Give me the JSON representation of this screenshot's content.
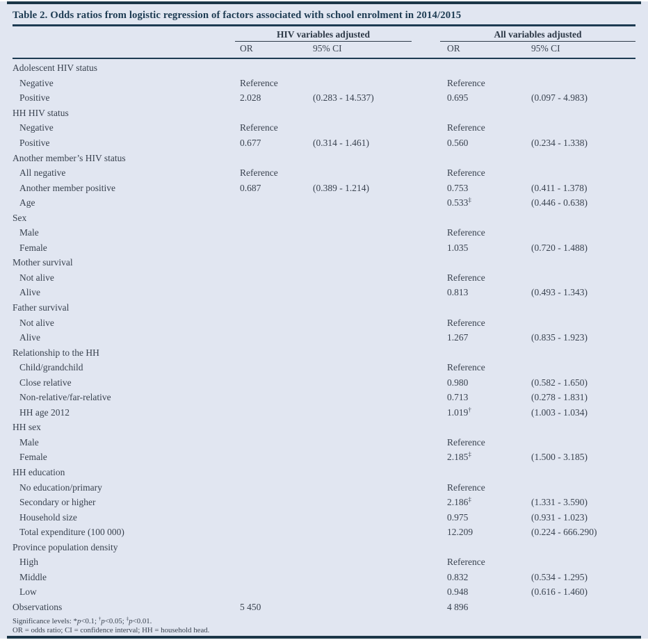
{
  "title": "Table 2. Odds ratios from logistic regression of factors associated with school enrolment in 2014/2015",
  "columns": {
    "group1": "HIV variables adjusted",
    "group2": "All variables adjusted",
    "sub": [
      "OR",
      "95% CI",
      "OR",
      "95% CI"
    ]
  },
  "table": {
    "rows": [
      {
        "label": "Adolescent HIV status",
        "indent": 0,
        "cells": [
          "",
          "",
          "",
          ""
        ]
      },
      {
        "label": "Negative",
        "indent": 1,
        "cells": [
          "Reference",
          "",
          "Reference",
          ""
        ]
      },
      {
        "label": "Positive",
        "indent": 1,
        "cells": [
          "2.028",
          "(0.283 - 14.537)",
          "0.695",
          "(0.097 - 4.983)"
        ]
      },
      {
        "label": "HH HIV status",
        "indent": 0,
        "cells": [
          "",
          "",
          "",
          ""
        ]
      },
      {
        "label": "Negative",
        "indent": 1,
        "cells": [
          "Reference",
          "",
          "Reference",
          ""
        ]
      },
      {
        "label": "Positive",
        "indent": 1,
        "cells": [
          "0.677",
          "(0.314 - 1.461)",
          "0.560",
          "(0.234 - 1.338)"
        ]
      },
      {
        "label": "Another member’s HIV status",
        "indent": 0,
        "cells": [
          "",
          "",
          "",
          ""
        ]
      },
      {
        "label": "All negative",
        "indent": 1,
        "cells": [
          "Reference",
          "",
          "Reference",
          ""
        ]
      },
      {
        "label": "Another member positive",
        "indent": 1,
        "cells": [
          "0.687",
          "(0.389 - 1.214)",
          "0.753",
          "(0.411 - 1.378)"
        ]
      },
      {
        "label": "Age",
        "indent": 1,
        "cells": [
          "",
          "",
          {
            "v": "0.533",
            "sup": "‡"
          },
          "(0.446 - 0.638)"
        ]
      },
      {
        "label": "Sex",
        "indent": 0,
        "cells": [
          "",
          "",
          "",
          ""
        ]
      },
      {
        "label": "Male",
        "indent": 1,
        "cells": [
          "",
          "",
          "Reference",
          ""
        ]
      },
      {
        "label": "Female",
        "indent": 1,
        "cells": [
          "",
          "",
          "1.035",
          "(0.720 - 1.488)"
        ]
      },
      {
        "label": "Mother survival",
        "indent": 0,
        "cells": [
          "",
          "",
          "",
          ""
        ]
      },
      {
        "label": "Not alive",
        "indent": 1,
        "cells": [
          "",
          "",
          "Reference",
          ""
        ]
      },
      {
        "label": "Alive",
        "indent": 1,
        "cells": [
          "",
          "",
          "0.813",
          "(0.493 - 1.343)"
        ]
      },
      {
        "label": "Father survival",
        "indent": 0,
        "cells": [
          "",
          "",
          "",
          ""
        ]
      },
      {
        "label": "Not alive",
        "indent": 1,
        "cells": [
          "",
          "",
          "Reference",
          ""
        ]
      },
      {
        "label": "Alive",
        "indent": 1,
        "cells": [
          "",
          "",
          "1.267",
          "(0.835 - 1.923)"
        ]
      },
      {
        "label": "Relationship to the HH",
        "indent": 0,
        "cells": [
          "",
          "",
          "",
          ""
        ]
      },
      {
        "label": "Child/grandchild",
        "indent": 1,
        "cells": [
          "",
          "",
          "Reference",
          ""
        ]
      },
      {
        "label": "Close relative",
        "indent": 1,
        "cells": [
          "",
          "",
          "0.980",
          "(0.582 - 1.650)"
        ]
      },
      {
        "label": "Non-relative/far-relative",
        "indent": 1,
        "cells": [
          "",
          "",
          "0.713",
          "(0.278 - 1.831)"
        ]
      },
      {
        "label": "HH age 2012",
        "indent": 1,
        "cells": [
          "",
          "",
          {
            "v": "1.019",
            "sup": "†"
          },
          "(1.003 - 1.034)"
        ]
      },
      {
        "label": "HH sex",
        "indent": 0,
        "cells": [
          "",
          "",
          "",
          ""
        ]
      },
      {
        "label": "Male",
        "indent": 1,
        "cells": [
          "",
          "",
          "Reference",
          ""
        ]
      },
      {
        "label": "Female",
        "indent": 1,
        "cells": [
          "",
          "",
          {
            "v": "2.185",
            "sup": "‡"
          },
          "(1.500 - 3.185)"
        ]
      },
      {
        "label": "HH education",
        "indent": 0,
        "cells": [
          "",
          "",
          "",
          ""
        ]
      },
      {
        "label": "No education/primary",
        "indent": 1,
        "cells": [
          "",
          "",
          "Reference",
          ""
        ]
      },
      {
        "label": "Secondary or higher",
        "indent": 1,
        "cells": [
          "",
          "",
          {
            "v": "2.186",
            "sup": "‡"
          },
          "(1.331 - 3.590)"
        ]
      },
      {
        "label": "Household size",
        "indent": 1,
        "cells": [
          "",
          "",
          "0.975",
          "(0.931 - 1.023)"
        ]
      },
      {
        "label": "Total expenditure (100 000)",
        "indent": 1,
        "cells": [
          "",
          "",
          "12.209",
          "(0.224 - 666.290)"
        ]
      },
      {
        "label": "Province population density",
        "indent": 0,
        "cells": [
          "",
          "",
          "",
          ""
        ]
      },
      {
        "label": "High",
        "indent": 1,
        "cells": [
          "",
          "",
          "Reference",
          ""
        ]
      },
      {
        "label": "Middle",
        "indent": 1,
        "cells": [
          "",
          "",
          "0.832",
          "(0.534 - 1.295)"
        ]
      },
      {
        "label": "Low",
        "indent": 1,
        "cells": [
          "",
          "",
          "0.948",
          "(0.616 - 1.460)"
        ]
      },
      {
        "label": "Observations",
        "indent": 0,
        "cells": [
          "5 450",
          "",
          "4 896",
          ""
        ]
      }
    ]
  },
  "footnotes": {
    "line1_parts": [
      {
        "t": "Significance levels: *"
      },
      {
        "t": "p",
        "i": true
      },
      {
        "t": "<0.1; "
      },
      {
        "t": "†",
        "s": true
      },
      {
        "t": "p",
        "i": true
      },
      {
        "t": "<0.05; "
      },
      {
        "t": "‡",
        "s": true
      },
      {
        "t": "p",
        "i": true
      },
      {
        "t": "<0.01."
      }
    ],
    "line2": "OR = odds ratio; CI = confidence interval; HH = household head."
  },
  "colors": {
    "background": "#e1e6f1",
    "rule": "#1d3b52",
    "bar": "#1b3648",
    "text": "#39424f"
  }
}
